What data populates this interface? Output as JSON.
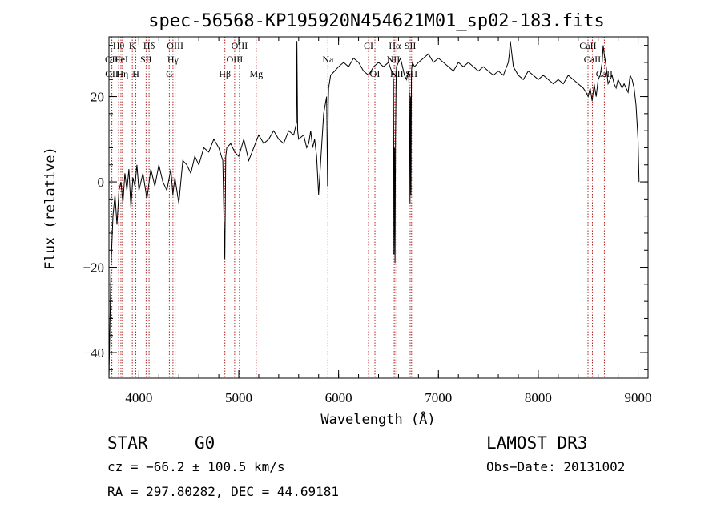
{
  "chart_data": {
    "type": "line",
    "title": "spec-56568-KP195920N454621M01_sp02-183.fits",
    "xlabel": "Wavelength (Å)",
    "ylabel": "Flux (relative)",
    "xlim": [
      3700,
      9100
    ],
    "ylim": [
      -46,
      34
    ],
    "xticks": [
      4000,
      5000,
      6000,
      7000,
      8000,
      9000
    ],
    "yticks": [
      -40,
      -20,
      0,
      20
    ],
    "x_minor_step": 200,
    "y_minor_step": 4,
    "series": [
      {
        "name": "flux",
        "x": [
          3700,
          3720,
          3740,
          3760,
          3780,
          3800,
          3820,
          3840,
          3860,
          3880,
          3900,
          3920,
          3940,
          3960,
          3980,
          4000,
          4040,
          4080,
          4120,
          4160,
          4200,
          4240,
          4280,
          4320,
          4340,
          4360,
          4400,
          4440,
          4480,
          4520,
          4560,
          4600,
          4650,
          4700,
          4750,
          4800,
          4840,
          4860,
          4870,
          4880,
          4920,
          4960,
          5000,
          5050,
          5100,
          5150,
          5200,
          5250,
          5300,
          5350,
          5400,
          5450,
          5500,
          5550,
          5570,
          5578,
          5582,
          5590,
          5600,
          5650,
          5680,
          5700,
          5720,
          5740,
          5760,
          5780,
          5800,
          5850,
          5880,
          5890,
          5896,
          5900,
          5920,
          5960,
          6000,
          6050,
          6100,
          6150,
          6200,
          6250,
          6300,
          6350,
          6400,
          6450,
          6500,
          6530,
          6550,
          6555,
          6560,
          6565,
          6570,
          6575,
          6580,
          6600,
          6620,
          6640,
          6660,
          6680,
          6700,
          6710,
          6715,
          6720,
          6725,
          6730,
          6740,
          6760,
          6800,
          6850,
          6900,
          6950,
          7000,
          7050,
          7100,
          7150,
          7200,
          7250,
          7300,
          7350,
          7400,
          7450,
          7500,
          7550,
          7600,
          7650,
          7700,
          7710,
          7720,
          7750,
          7800,
          7850,
          7900,
          7950,
          8000,
          8050,
          8100,
          8150,
          8200,
          8250,
          8300,
          8350,
          8400,
          8450,
          8480,
          8500,
          8520,
          8540,
          8560,
          8580,
          8600,
          8620,
          8640,
          8650,
          8660,
          8680,
          8700,
          8720,
          8740,
          8760,
          8780,
          8800,
          8820,
          8840,
          8860,
          8880,
          8900,
          8920,
          8940,
          8960,
          8980,
          9000,
          9010
        ],
        "values": [
          -46,
          -20,
          -8,
          -3,
          -10,
          -2,
          0,
          -5,
          2,
          -2,
          3,
          -6,
          1,
          -1,
          4,
          -2,
          2,
          -4,
          3,
          -1,
          4,
          0,
          -2,
          3,
          -3,
          1,
          -5,
          5,
          4,
          2,
          6,
          4,
          8,
          7,
          10,
          8,
          5,
          -18,
          6,
          8,
          9,
          7,
          6,
          10,
          5,
          8,
          11,
          9,
          10,
          12,
          10,
          9,
          12,
          11,
          13,
          14,
          33,
          12,
          10,
          11,
          8,
          9,
          12,
          8,
          10,
          6,
          -3,
          16,
          20,
          -1,
          18,
          22,
          25,
          26,
          27,
          28,
          27,
          29,
          28,
          26,
          25,
          27,
          28,
          27,
          28,
          26,
          24,
          -17,
          8,
          -19,
          10,
          22,
          27,
          28,
          29,
          27,
          25,
          24,
          26,
          20,
          -5,
          20,
          -3,
          26,
          28,
          27,
          28,
          29,
          30,
          28,
          29,
          28,
          27,
          26,
          28,
          27,
          28,
          27,
          26,
          27,
          26,
          25,
          26,
          25,
          28,
          30,
          33,
          27,
          25,
          24,
          26,
          25,
          24,
          25,
          24,
          23,
          24,
          23,
          25,
          24,
          23,
          22,
          21,
          20,
          22,
          19,
          23,
          20,
          24,
          25,
          28,
          32,
          30,
          27,
          23,
          24,
          25,
          23,
          22,
          24,
          23,
          22,
          23,
          22,
          21,
          25,
          24,
          22,
          18,
          10,
          0
        ]
      }
    ],
    "lines": [
      {
        "label": "Hθ",
        "x": 3797,
        "row": 1
      },
      {
        "label": "OII",
        "x": 3727,
        "row": 2
      },
      {
        "label": "OII",
        "x": 3729,
        "row": 3
      },
      {
        "label": "HeI",
        "x": 3820,
        "row": 2
      },
      {
        "label": "Hη",
        "x": 3835,
        "row": 3
      },
      {
        "label": "K",
        "x": 3934,
        "row": 1
      },
      {
        "label": "H",
        "x": 3969,
        "row": 3
      },
      {
        "label": "SII",
        "x": 4072,
        "row": 2
      },
      {
        "label": "Hδ",
        "x": 4102,
        "row": 1
      },
      {
        "label": "OIII",
        "x": 4363,
        "row": 1
      },
      {
        "label": "Hγ",
        "x": 4341,
        "row": 2
      },
      {
        "label": "G",
        "x": 4305,
        "row": 3
      },
      {
        "label": "Hβ",
        "x": 4861,
        "row": 3
      },
      {
        "label": "OIII",
        "x": 5007,
        "row": 1
      },
      {
        "label": "OIII",
        "x": 4959,
        "row": 2
      },
      {
        "label": "Mg",
        "x": 5175,
        "row": 3
      },
      {
        "label": "Na",
        "x": 5893,
        "row": 2
      },
      {
        "label": "CI",
        "x": 6300,
        "row": 1
      },
      {
        "label": "OI",
        "x": 6364,
        "row": 3
      },
      {
        "label": "Hα",
        "x": 6563,
        "row": 1
      },
      {
        "label": "NII",
        "x": 6548,
        "row": 2
      },
      {
        "label": "NII",
        "x": 6583,
        "row": 3
      },
      {
        "label": "SII",
        "x": 6717,
        "row": 1
      },
      {
        "label": "SII",
        "x": 6731,
        "row": 3
      },
      {
        "label": "CaII",
        "x": 8498,
        "row": 1
      },
      {
        "label": "CaII",
        "x": 8542,
        "row": 2
      },
      {
        "label": "CaII",
        "x": 8662,
        "row": 3
      }
    ]
  },
  "info": {
    "class_label": "STAR",
    "subclass_label": "G0",
    "cz_text": "cz = −66.2 ± 100.5 km/s",
    "radec_text": "RA = 297.80282, DEC =  44.69181",
    "survey_text": "LAMOST DR3",
    "obsdate_text": "Obs−Date: 20131002"
  }
}
